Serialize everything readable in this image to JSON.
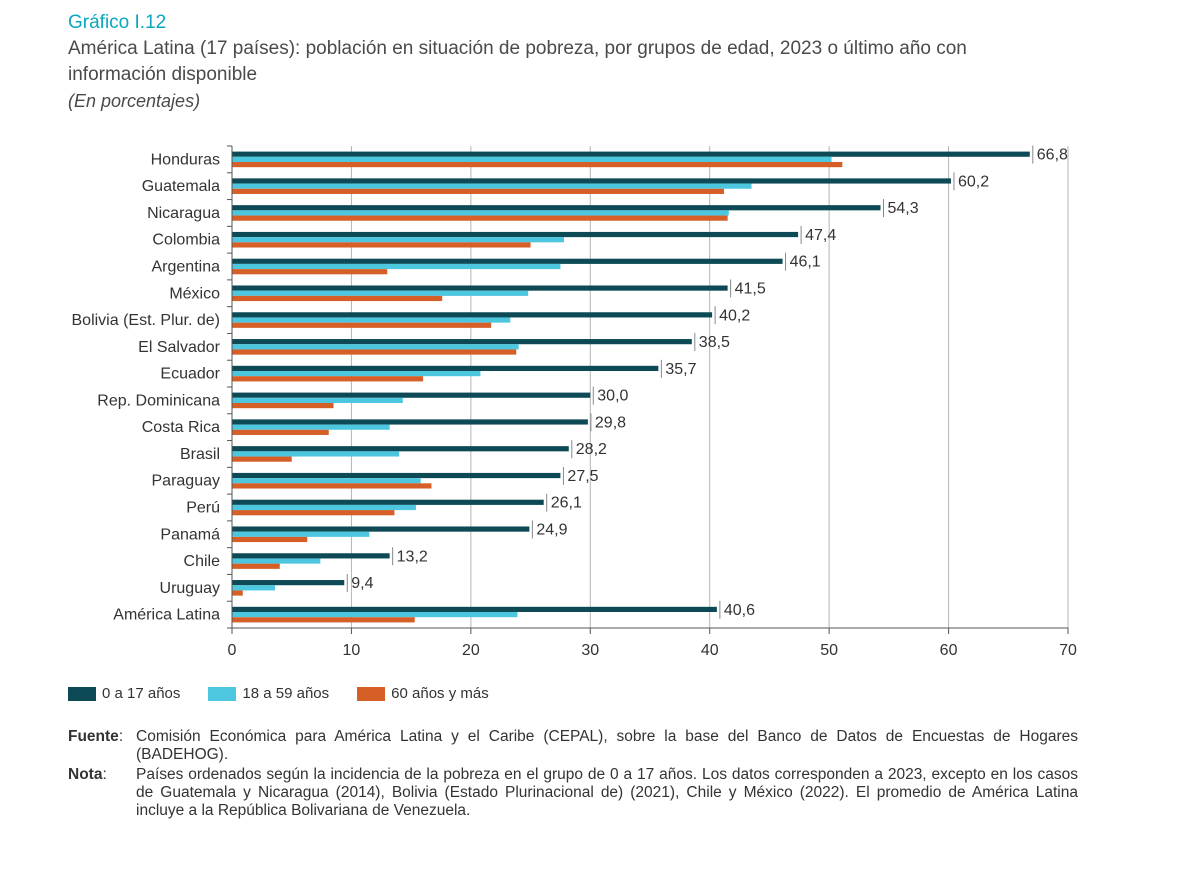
{
  "header": {
    "figure_label": "Gráfico I.12",
    "title": "América Latina (17 países): población en situación de pobreza, por grupos de edad, 2023 o último año con información disponible",
    "subtitle": "(En porcentajes)"
  },
  "chart_data": {
    "type": "bar",
    "orientation": "horizontal",
    "categories": [
      "Honduras",
      "Guatemala",
      "Nicaragua",
      "Colombia",
      "Argentina",
      "México",
      "Bolivia (Est. Plur. de)",
      "El Salvador",
      "Ecuador",
      "Rep. Dominicana",
      "Costa Rica",
      "Brasil",
      "Paraguay",
      "Perú",
      "Panamá",
      "Chile",
      "Uruguay",
      "América Latina"
    ],
    "series": [
      {
        "name": "0 a 17 años",
        "color": "#0d4a55",
        "values": [
          66.8,
          60.2,
          54.3,
          47.4,
          46.1,
          41.5,
          40.2,
          38.5,
          35.7,
          30.0,
          29.8,
          28.2,
          27.5,
          26.1,
          24.9,
          13.2,
          9.4,
          40.6
        ]
      },
      {
        "name": "18 a 59 años",
        "color": "#4dc6e0",
        "values": [
          50.2,
          43.5,
          41.6,
          27.8,
          27.5,
          24.8,
          23.3,
          24.0,
          20.8,
          14.3,
          13.2,
          14.0,
          15.8,
          15.4,
          11.5,
          7.4,
          3.6,
          23.9
        ]
      },
      {
        "name": "60 años y más",
        "color": "#d65f28",
        "values": [
          51.1,
          41.2,
          41.5,
          25.0,
          13.0,
          17.6,
          21.7,
          23.8,
          16.0,
          8.5,
          8.1,
          5.0,
          16.7,
          13.6,
          6.3,
          4.0,
          0.9,
          15.3
        ]
      }
    ],
    "labels": [
      "66,8",
      "60,2",
      "54,3",
      "47,4",
      "46,1",
      "41,5",
      "40,2",
      "38,5",
      "35,7",
      "30,0",
      "29,8",
      "28,2",
      "27,5",
      "26,1",
      "24,9",
      "13,2",
      "9,4",
      "40,6"
    ],
    "xlim": [
      0,
      70
    ],
    "xticks": [
      0,
      10,
      20,
      30,
      40,
      50,
      60,
      70
    ],
    "grid": "vertical",
    "legend_position": "bottom-left"
  },
  "legend": {
    "items": [
      {
        "label": "0 a 17 años",
        "color": "#0d4a55"
      },
      {
        "label": "18 a 59 años",
        "color": "#4dc6e0"
      },
      {
        "label": "60 años y más",
        "color": "#d65f28"
      }
    ]
  },
  "notes": {
    "source_label": "Fuente",
    "source_sep": ":",
    "source_text": "Comisión Económica para América Latina y el Caribe (CEPAL), sobre la base del Banco de Datos de Encuestas de Hogares (BADEHOG).",
    "note_label": "Nota",
    "note_sep": ":",
    "note_text": "Países ordenados según la incidencia de la pobreza en el grupo de 0 a 17 años. Los datos corresponden a 2023, excepto en los casos de Guatemala y Nicaragua (2014), Bolivia (Estado Plurinacional de) (2021), Chile y México (2022). El promedio de América Latina incluye a la República Bolivariana de Venezuela."
  }
}
